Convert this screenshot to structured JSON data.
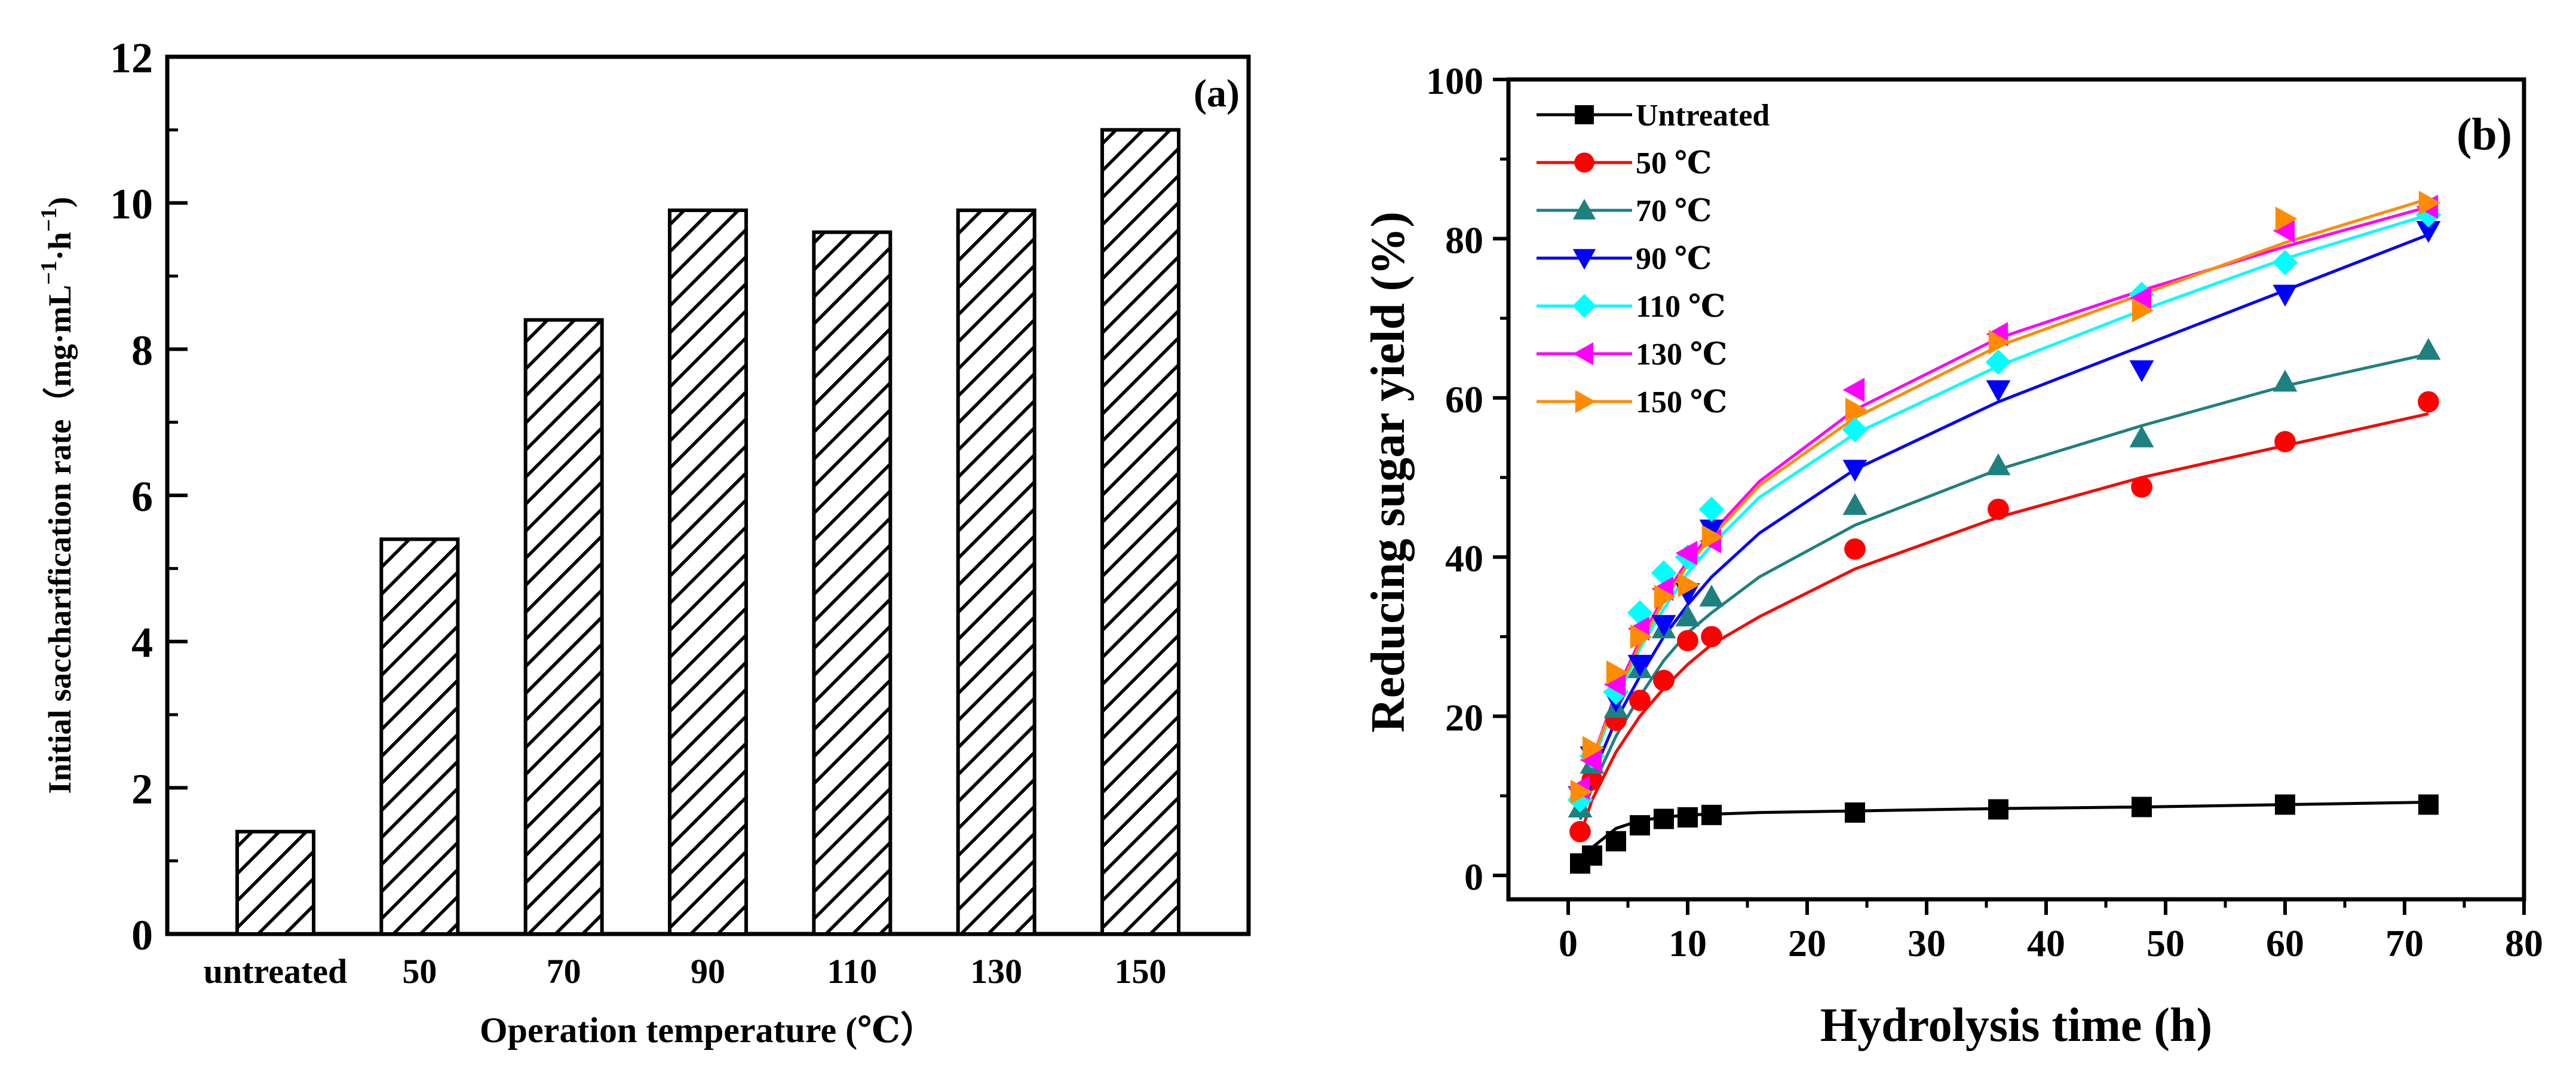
{
  "chart_data": [
    {
      "type": "bar",
      "panel_label": "(a)",
      "title": "",
      "xlabel": "Operation temperature (℃）",
      "ylabel": "Initial saccharification rate（mg·mL",
      "ylabel_unit_sup1": "−1",
      "ylabel_unit_mid": "·h",
      "ylabel_unit_sup2": "−1",
      "ylabel_close": ")",
      "categories": [
        "untreated",
        "50",
        "70",
        "90",
        "110",
        "130",
        "150"
      ],
      "values": [
        1.4,
        5.4,
        8.4,
        9.9,
        9.6,
        9.9,
        11.0
      ],
      "ylim": [
        0,
        12
      ],
      "yticks": [
        0,
        2,
        4,
        6,
        8,
        10,
        12
      ],
      "pattern": "diagonal hatch",
      "grid": false
    },
    {
      "type": "scatter",
      "panel_label": "(b)",
      "title": "",
      "xlabel": "Hydrolysis time (h)",
      "ylabel": "Reducing sugar yield (%)",
      "xlim": [
        -5,
        80
      ],
      "ylim": [
        -3,
        100
      ],
      "xticks": [
        0,
        10,
        20,
        30,
        40,
        50,
        60,
        70,
        80
      ],
      "yticks": [
        0,
        20,
        40,
        60,
        80,
        100
      ],
      "legend_position": "top-left",
      "grid": false,
      "x": [
        1,
        2,
        4,
        6,
        8,
        10,
        12,
        24,
        36,
        48,
        60,
        72
      ],
      "series": [
        {
          "name": "Untreated",
          "color": "#000000",
          "marker": "square",
          "values": [
            1.5,
            2.5,
            4.3,
            6.3,
            7.1,
            7.3,
            7.6,
            7.9,
            8.3,
            8.6,
            8.9,
            8.9
          ],
          "fit": [
            [
              1,
              1.5
            ],
            [
              2,
              3.5
            ],
            [
              4,
              5.9
            ],
            [
              6,
              6.9
            ],
            [
              8,
              7.3
            ],
            [
              10,
              7.6
            ],
            [
              12,
              7.7
            ],
            [
              16,
              7.9
            ],
            [
              24,
              8.1
            ],
            [
              36,
              8.4
            ],
            [
              48,
              8.6
            ],
            [
              60,
              8.9
            ],
            [
              72,
              9.2
            ]
          ]
        },
        {
          "name": "50 ℃",
          "color": "#ff0000",
          "marker": "circle",
          "values": [
            5.5,
            12.0,
            19.5,
            22.0,
            24.5,
            29.5,
            30.0,
            41.0,
            46.0,
            48.8,
            54.5,
            59.5
          ],
          "fit": [
            [
              1,
              5
            ],
            [
              2,
              9.5
            ],
            [
              4,
              15.5
            ],
            [
              6,
              20
            ],
            [
              8,
              23.5
            ],
            [
              10,
              26.5
            ],
            [
              12,
              29
            ],
            [
              16,
              32.5
            ],
            [
              24,
              38.5
            ],
            [
              36,
              45
            ],
            [
              48,
              50
            ],
            [
              60,
              54
            ],
            [
              72,
              58
            ]
          ]
        },
        {
          "name": "70 ℃",
          "color": "#1f8080",
          "marker": "triangle-up",
          "values": [
            8.5,
            14.0,
            21.0,
            26.0,
            31.0,
            32.5,
            35.0,
            46.5,
            51.5,
            55.0,
            62.0,
            66.0
          ],
          "fit": [
            [
              1,
              7
            ],
            [
              2,
              11
            ],
            [
              4,
              17.5
            ],
            [
              6,
              22.5
            ],
            [
              8,
              27
            ],
            [
              10,
              30.5
            ],
            [
              12,
              33
            ],
            [
              16,
              37.5
            ],
            [
              24,
              44
            ],
            [
              36,
              51
            ],
            [
              48,
              56.5
            ],
            [
              60,
              61.5
            ],
            [
              72,
              65.5
            ]
          ]
        },
        {
          "name": "90 ℃",
          "color": "#0000ff",
          "marker": "triangle-down",
          "values": [
            10.0,
            15.0,
            22.0,
            26.5,
            31.5,
            35.5,
            43.5,
            51.0,
            61.0,
            63.5,
            73.0,
            81.0
          ],
          "fit": [
            [
              1,
              8
            ],
            [
              2,
              12.5
            ],
            [
              4,
              19.5
            ],
            [
              6,
              25
            ],
            [
              8,
              30
            ],
            [
              10,
              34
            ],
            [
              12,
              37.5
            ],
            [
              16,
              43
            ],
            [
              24,
              51
            ],
            [
              36,
              59.5
            ],
            [
              48,
              66.5
            ],
            [
              60,
              73.5
            ],
            [
              72,
              80.5
            ]
          ]
        },
        {
          "name": "110 ℃",
          "color": "#00ffff",
          "marker": "diamond",
          "values": [
            9.5,
            15.0,
            23.0,
            33.0,
            38.0,
            40.0,
            46.0,
            56.0,
            64.5,
            73.0,
            77.0,
            83.0
          ],
          "fit": [
            [
              1,
              9
            ],
            [
              2,
              14
            ],
            [
              4,
              22
            ],
            [
              6,
              28.5
            ],
            [
              8,
              33.5
            ],
            [
              10,
              38
            ],
            [
              12,
              41.5
            ],
            [
              16,
              47.5
            ],
            [
              24,
              55.5
            ],
            [
              36,
              64
            ],
            [
              48,
              71
            ],
            [
              60,
              77.5
            ],
            [
              72,
              83
            ]
          ]
        },
        {
          "name": "130 ℃",
          "color": "#ff00ff",
          "marker": "triangle-left",
          "values": [
            11.0,
            14.5,
            24.0,
            31.0,
            36.0,
            40.5,
            42.0,
            61.0,
            68.0,
            72.5,
            81.0,
            84.0
          ],
          "fit": [
            [
              1,
              9.5
            ],
            [
              2,
              14.5
            ],
            [
              4,
              23
            ],
            [
              6,
              29.5
            ],
            [
              8,
              35
            ],
            [
              10,
              39.5
            ],
            [
              12,
              43
            ],
            [
              16,
              49.5
            ],
            [
              24,
              58.5
            ],
            [
              36,
              67.5
            ],
            [
              48,
              73.5
            ],
            [
              60,
              79
            ],
            [
              72,
              84
            ]
          ]
        },
        {
          "name": "150 ℃",
          "color": "#ff8c00",
          "marker": "triangle-right",
          "values": [
            10.5,
            16.0,
            25.5,
            30.0,
            35.0,
            36.5,
            42.5,
            58.5,
            67.0,
            71.0,
            82.5,
            84.5
          ],
          "fit": [
            [
              1,
              9.5
            ],
            [
              2,
              14.5
            ],
            [
              4,
              22.5
            ],
            [
              6,
              29
            ],
            [
              8,
              34.5
            ],
            [
              10,
              39
            ],
            [
              12,
              42.5
            ],
            [
              16,
              49
            ],
            [
              24,
              57.5
            ],
            [
              36,
              66.5
            ],
            [
              48,
              73
            ],
            [
              60,
              79.5
            ],
            [
              72,
              85
            ]
          ]
        }
      ]
    }
  ]
}
